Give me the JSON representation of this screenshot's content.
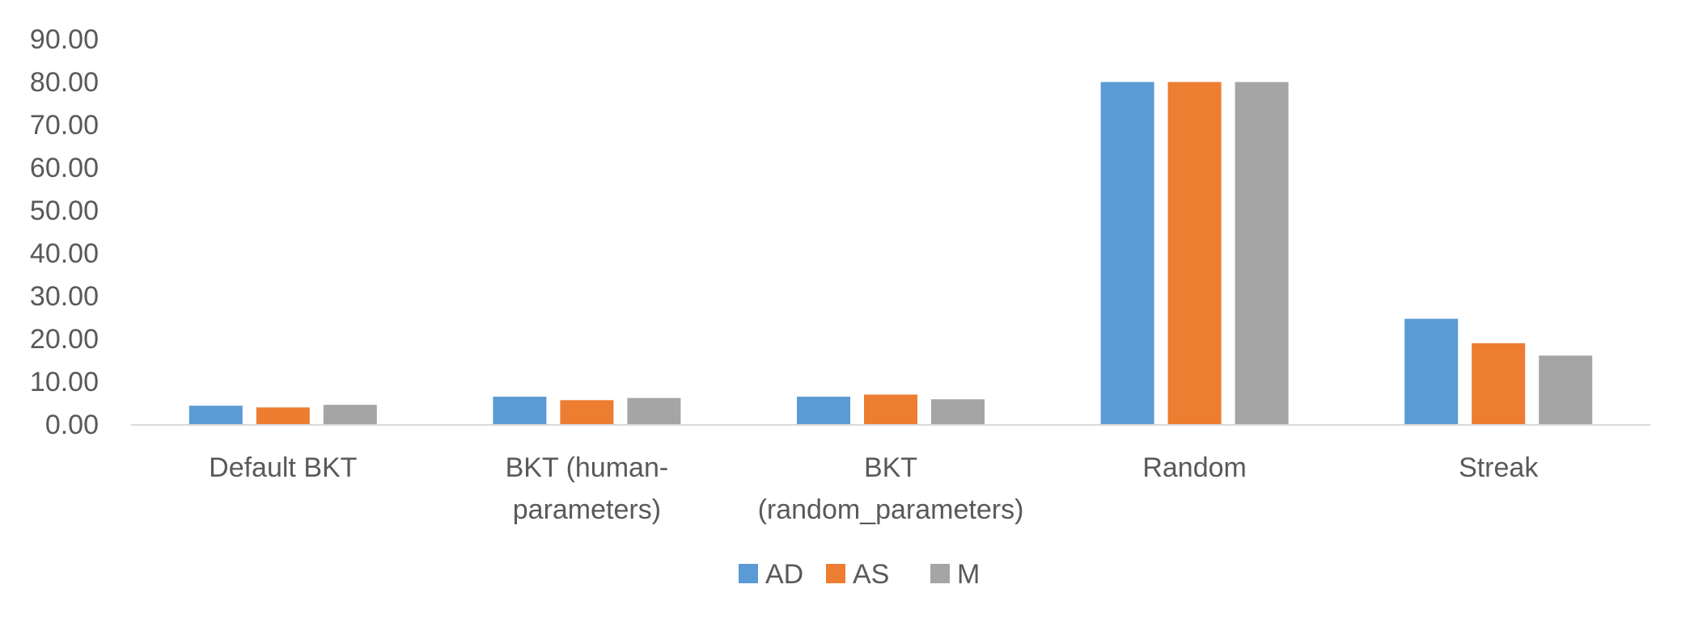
{
  "chart_data": {
    "type": "bar",
    "title": "",
    "xlabel": "",
    "ylabel": "",
    "ylim": [
      0,
      90
    ],
    "y_ticks": [
      "0.00",
      "10.00",
      "20.00",
      "30.00",
      "40.00",
      "50.00",
      "60.00",
      "70.00",
      "80.00",
      "90.00"
    ],
    "grid": false,
    "legend_position": "bottom",
    "categories": [
      [
        "Default BKT"
      ],
      [
        "BKT (human-",
        "parameters)"
      ],
      [
        "BKT",
        "(random_parameters)"
      ],
      [
        "Random"
      ],
      [
        "Streak"
      ]
    ],
    "series": [
      {
        "name": "AD",
        "color": "#5B9BD5",
        "values": [
          4.3,
          6.4,
          6.4,
          79.9,
          24.6
        ]
      },
      {
        "name": "AS",
        "color": "#ED7D31",
        "values": [
          3.9,
          5.6,
          6.9,
          79.9,
          18.9
        ]
      },
      {
        "name": "M",
        "color": "#A5A5A5",
        "values": [
          4.5,
          6.1,
          5.8,
          79.9,
          16.0
        ]
      }
    ],
    "axis_color": "#D9D9D9"
  }
}
